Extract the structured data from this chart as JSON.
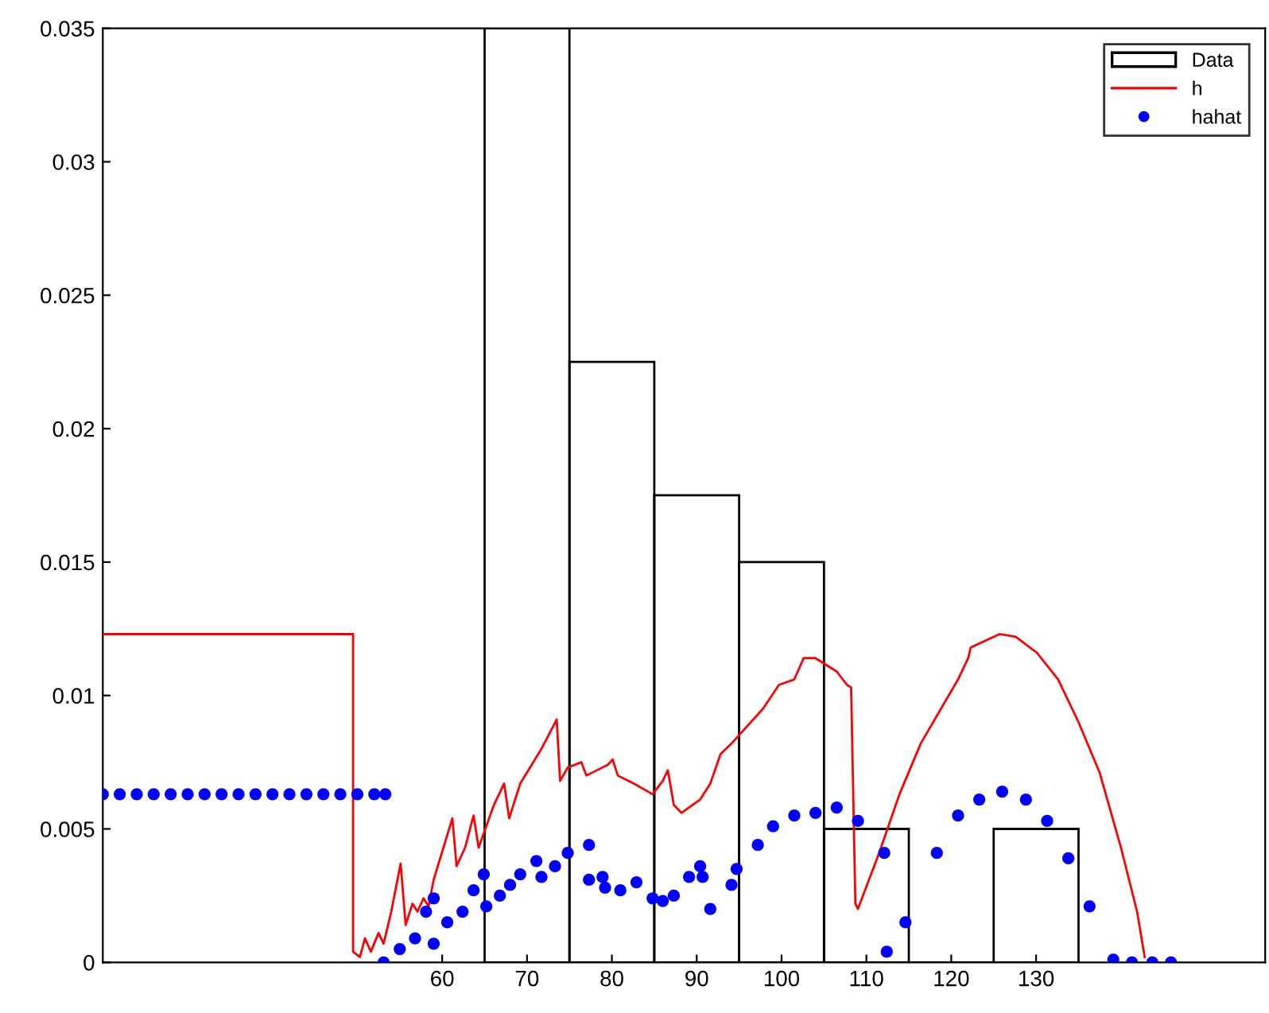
{
  "chart_data": {
    "type": "histogram",
    "series": [
      {
        "name": "Data",
        "color": "#000000",
        "bins": [
          65,
          75,
          85,
          95,
          105,
          115,
          125,
          135
        ],
        "values": [
          0.035,
          0.0225,
          0.0175,
          0.015,
          0.005,
          0,
          0.005
        ]
      },
      {
        "name": "h",
        "type": "line",
        "color": "#ff0000",
        "line_style": "solid",
        "marker": "none",
        "x": [
          20,
          49.5,
          49.5,
          50.3,
          50.9,
          51.6,
          52.5,
          53.1,
          54.0,
          55.1,
          55.7,
          56.5,
          57.1,
          57.8,
          58.4,
          59.0,
          61.2,
          61.7,
          62.7,
          63.7,
          64.3,
          65.2,
          66.1,
          67.3,
          67.9,
          69.2,
          71.7,
          73.5,
          73.9,
          74.8,
          76.4,
          77.0,
          79.5,
          80.1,
          80.7,
          82.6,
          84.8,
          86.0,
          86.6,
          87.3,
          88.2,
          90.4,
          91.6,
          92.8,
          94.1,
          97.8,
          99.7,
          101.5,
          102.6,
          104.0,
          106.5,
          107.7,
          108.2,
          108.7,
          109.0,
          111.5,
          113.9,
          116.4,
          120.8,
          122.0,
          122.3,
          125.7,
          127.6,
          130.1,
          132.6,
          135.0,
          137.5,
          140.0,
          141.9,
          142.8
        ],
        "values": [
          0.0123,
          0.0123,
          0.0004,
          0.0002,
          0.0009,
          0.0004,
          0.0011,
          0.0007,
          0.0019,
          0.0037,
          0.0014,
          0.0022,
          0.0019,
          0.0024,
          0.0021,
          0.0031,
          0.0054,
          0.0036,
          0.0043,
          0.0055,
          0.0043,
          0.0051,
          0.0059,
          0.0067,
          0.0054,
          0.0067,
          0.008,
          0.0091,
          0.0068,
          0.0073,
          0.0075,
          0.007,
          0.0074,
          0.0076,
          0.007,
          0.0067,
          0.0063,
          0.0068,
          0.0072,
          0.0059,
          0.0056,
          0.0061,
          0.0067,
          0.0078,
          0.0082,
          0.0095,
          0.0104,
          0.0106,
          0.0114,
          0.0114,
          0.0109,
          0.0104,
          0.0103,
          0.0022,
          0.002,
          0.0041,
          0.0063,
          0.0082,
          0.0106,
          0.0114,
          0.0118,
          0.0123,
          0.0122,
          0.0116,
          0.0106,
          0.009,
          0.0071,
          0.0043,
          0.0019,
          0.0002
        ]
      },
      {
        "name": "hahat",
        "type": "scatter",
        "color": "#0000ff",
        "marker": "circle",
        "x": [
          20,
          22,
          24,
          26,
          28,
          30,
          32,
          34,
          36,
          38,
          40,
          42,
          44,
          46,
          48,
          50,
          52,
          53.3,
          53.1,
          55.0,
          56.8,
          58.1,
          59.0,
          59.0,
          60.6,
          62.4,
          63.7,
          64.9,
          65.2,
          66.8,
          68.0,
          69.2,
          71.1,
          71.7,
          73.3,
          74.8,
          77.3,
          77.3,
          78.9,
          79.2,
          81.0,
          82.9,
          84.8,
          86.0,
          87.3,
          89.1,
          90.4,
          90.7,
          91.6,
          94.1,
          94.7,
          97.2,
          99.0,
          101.5,
          104.0,
          106.5,
          109.0,
          112.1,
          112.4,
          114.6,
          118.3,
          120.8,
          123.3,
          126.0,
          128.8,
          131.3,
          133.8,
          136.3,
          139.1,
          141.3,
          143.7,
          145.9
        ],
        "values": [
          0.0063,
          0.0063,
          0.0063,
          0.0063,
          0.0063,
          0.0063,
          0.0063,
          0.0063,
          0.0063,
          0.0063,
          0.0063,
          0.0063,
          0.0063,
          0.0063,
          0.0063,
          0.0063,
          0.0063,
          0.0063,
          0,
          0.0005,
          0.0009,
          0.0019,
          0.0024,
          0.0007,
          0.0015,
          0.0019,
          0.0027,
          0.0033,
          0.0021,
          0.0025,
          0.0029,
          0.0033,
          0.0038,
          0.0032,
          0.0036,
          0.0041,
          0.0044,
          0.0031,
          0.0032,
          0.0028,
          0.0027,
          0.003,
          0.0024,
          0.0023,
          0.0025,
          0.0032,
          0.0036,
          0.0032,
          0.002,
          0.0029,
          0.0035,
          0.0044,
          0.0051,
          0.0055,
          0.0056,
          0.0058,
          0.0053,
          0.0041,
          0.0004,
          0.0015,
          0.0041,
          0.0055,
          0.0061,
          0.0064,
          0.0061,
          0.0053,
          0.0039,
          0.0021,
          0.0001,
          0,
          0,
          0
        ]
      }
    ],
    "xlim": [
      20,
      157
    ],
    "xticks": [
      60,
      70,
      80,
      90,
      100,
      110,
      120,
      130
    ],
    "ylim": [
      0,
      0.035
    ],
    "yticks": [
      0,
      0.005,
      0.01,
      0.015,
      0.02,
      0.025,
      0.03,
      0.035
    ],
    "grid": false,
    "legend": "top right"
  }
}
